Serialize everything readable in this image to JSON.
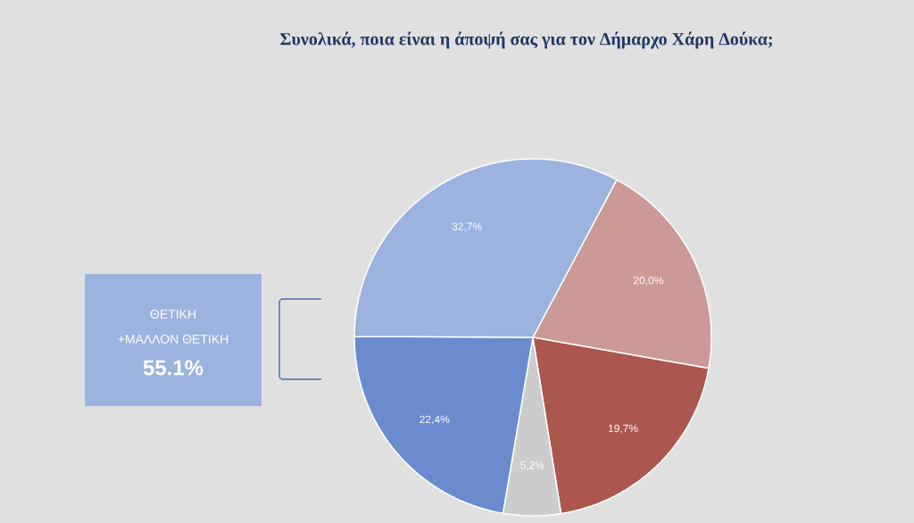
{
  "chart_data": {
    "type": "pie",
    "title": "Συνολικά, ποια είναι η άποψή σας για τον Δήμαρχο Χάρη Δούκα;",
    "categories": [
      null,
      null,
      null,
      null,
      null
    ],
    "values": [
      20.0,
      19.7,
      5.2,
      22.4,
      32.7
    ],
    "value_labels": [
      "20,0%",
      "19,7%",
      "5,2%",
      "22,4%",
      "32,7%"
    ],
    "colors": [
      "#cc9a96",
      "#ab574f",
      "#cccccc",
      "#6a8ccf",
      "#9bb3de"
    ],
    "annotations": [
      "ΘΕΤΙΚΗ",
      "+ΜΑΛΛΟΝ ΘΕΤΙΚΗ",
      "55.1%"
    ]
  }
}
